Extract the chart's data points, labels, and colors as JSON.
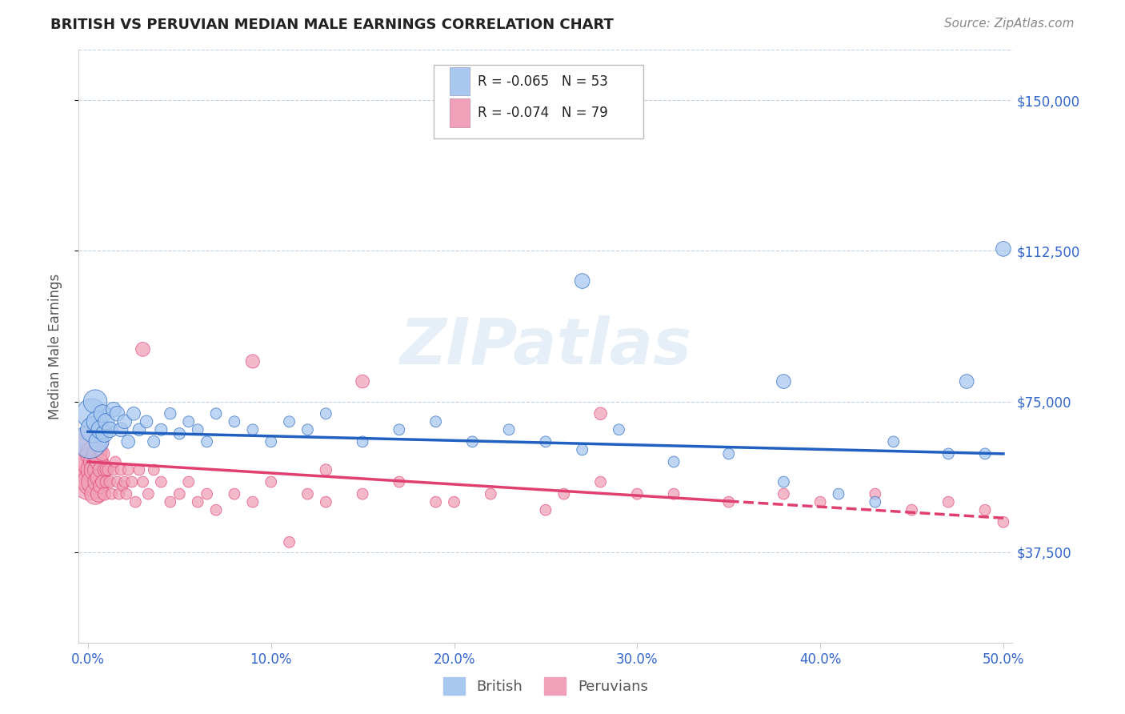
{
  "title": "BRITISH VS PERUVIAN MEDIAN MALE EARNINGS CORRELATION CHART",
  "source": "Source: ZipAtlas.com",
  "ylabel": "Median Male Earnings",
  "xlim": [
    -0.005,
    0.505
  ],
  "ylim": [
    15000,
    162500
  ],
  "yticks": [
    37500,
    75000,
    112500,
    150000
  ],
  "ytick_labels": [
    "$37,500",
    "$75,000",
    "$112,500",
    "$150,000"
  ],
  "xticks": [
    0.0,
    0.1,
    0.2,
    0.3,
    0.4,
    0.5
  ],
  "xtick_labels": [
    "0.0%",
    "10.0%",
    "20.0%",
    "30.0%",
    "40.0%",
    "50.0%"
  ],
  "british_R": -0.065,
  "british_N": 53,
  "peruvian_R": -0.074,
  "peruvian_N": 79,
  "british_color": "#a8c8f0",
  "peruvian_color": "#f0a0b8",
  "british_line_color": "#2060c0",
  "peruvian_line_color": "#e04070",
  "watermark": "ZIPatlas",
  "british_x": [
    0.001,
    0.002,
    0.003,
    0.004,
    0.005,
    0.006,
    0.007,
    0.008,
    0.009,
    0.01,
    0.012,
    0.014,
    0.016,
    0.018,
    0.02,
    0.022,
    0.025,
    0.028,
    0.032,
    0.036,
    0.04,
    0.045,
    0.05,
    0.055,
    0.06,
    0.065,
    0.07,
    0.08,
    0.09,
    0.1,
    0.11,
    0.12,
    0.13,
    0.15,
    0.17,
    0.19,
    0.21,
    0.23,
    0.25,
    0.27,
    0.29,
    0.32,
    0.35,
    0.38,
    0.41,
    0.44,
    0.47,
    0.49,
    0.27,
    0.38,
    0.43,
    0.48,
    0.5
  ],
  "british_y": [
    65000,
    72000,
    68000,
    75000,
    70000,
    65000,
    68000,
    72000,
    67000,
    70000,
    68000,
    73000,
    72000,
    68000,
    70000,
    65000,
    72000,
    68000,
    70000,
    65000,
    68000,
    72000,
    67000,
    70000,
    68000,
    65000,
    72000,
    70000,
    68000,
    65000,
    70000,
    68000,
    72000,
    65000,
    68000,
    70000,
    65000,
    68000,
    65000,
    63000,
    68000,
    60000,
    62000,
    55000,
    52000,
    65000,
    62000,
    62000,
    105000,
    80000,
    50000,
    80000,
    113000
  ],
  "british_sizes": [
    500,
    400,
    300,
    250,
    200,
    180,
    160,
    140,
    130,
    120,
    110,
    100,
    100,
    90,
    90,
    80,
    80,
    70,
    70,
    65,
    65,
    60,
    60,
    55,
    55,
    55,
    55,
    55,
    55,
    55,
    55,
    55,
    55,
    55,
    55,
    55,
    55,
    55,
    55,
    55,
    55,
    55,
    55,
    55,
    55,
    55,
    55,
    55,
    100,
    90,
    55,
    90,
    100
  ],
  "peruvian_x": [
    0.001,
    0.001,
    0.002,
    0.002,
    0.002,
    0.003,
    0.003,
    0.003,
    0.004,
    0.004,
    0.004,
    0.005,
    0.005,
    0.005,
    0.006,
    0.006,
    0.006,
    0.007,
    0.007,
    0.008,
    0.008,
    0.009,
    0.009,
    0.01,
    0.01,
    0.011,
    0.012,
    0.013,
    0.014,
    0.015,
    0.016,
    0.017,
    0.018,
    0.019,
    0.02,
    0.021,
    0.022,
    0.024,
    0.026,
    0.028,
    0.03,
    0.033,
    0.036,
    0.04,
    0.045,
    0.05,
    0.055,
    0.06,
    0.065,
    0.07,
    0.08,
    0.09,
    0.1,
    0.11,
    0.12,
    0.13,
    0.15,
    0.17,
    0.19,
    0.22,
    0.25,
    0.28,
    0.3,
    0.32,
    0.35,
    0.38,
    0.4,
    0.43,
    0.45,
    0.47,
    0.49,
    0.5,
    0.15,
    0.09,
    0.03,
    0.28,
    0.13,
    0.2,
    0.26
  ],
  "peruvian_y": [
    58000,
    55000,
    65000,
    60000,
    55000,
    62000,
    58000,
    55000,
    60000,
    58000,
    52000,
    62000,
    58000,
    55000,
    60000,
    56000,
    52000,
    58000,
    54000,
    62000,
    55000,
    58000,
    52000,
    58000,
    55000,
    58000,
    55000,
    52000,
    58000,
    60000,
    55000,
    52000,
    58000,
    54000,
    55000,
    52000,
    58000,
    55000,
    50000,
    58000,
    55000,
    52000,
    58000,
    55000,
    50000,
    52000,
    55000,
    50000,
    52000,
    48000,
    52000,
    50000,
    55000,
    40000,
    52000,
    50000,
    52000,
    55000,
    50000,
    52000,
    48000,
    55000,
    52000,
    52000,
    50000,
    52000,
    50000,
    52000,
    48000,
    50000,
    48000,
    45000,
    80000,
    85000,
    88000,
    72000,
    58000,
    50000,
    52000
  ],
  "peruvian_sizes": [
    800,
    600,
    500,
    400,
    350,
    300,
    280,
    260,
    240,
    220,
    200,
    180,
    160,
    150,
    140,
    130,
    120,
    110,
    100,
    90,
    85,
    80,
    75,
    70,
    65,
    60,
    60,
    55,
    55,
    55,
    55,
    55,
    55,
    55,
    55,
    55,
    55,
    55,
    55,
    55,
    55,
    55,
    55,
    55,
    55,
    55,
    55,
    55,
    55,
    55,
    55,
    55,
    55,
    55,
    55,
    55,
    55,
    55,
    55,
    55,
    55,
    55,
    55,
    55,
    55,
    55,
    55,
    55,
    55,
    55,
    55,
    55,
    80,
    85,
    90,
    70,
    60,
    55,
    55
  ],
  "trend_line_solid_end": 0.35,
  "british_trend_y0": 67500,
  "british_trend_y1": 62000,
  "peruvian_trend_y0": 60000,
  "peruvian_trend_y1": 46000
}
